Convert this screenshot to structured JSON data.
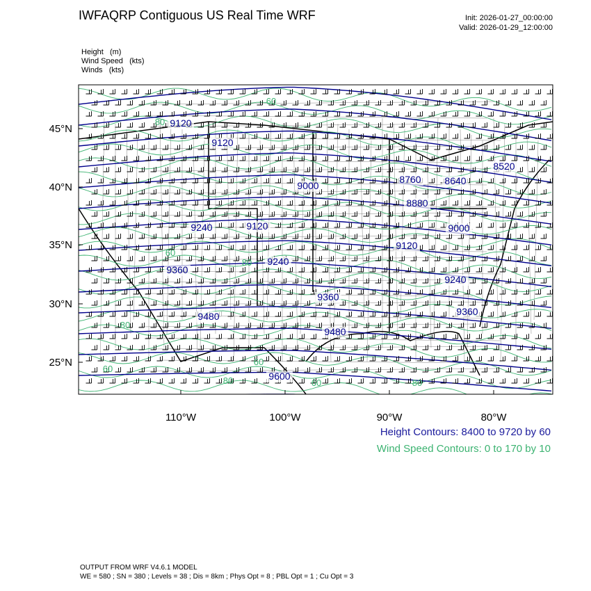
{
  "header": {
    "title": "IWFAQRP Contiguous US Real Time WRF",
    "init": "Init: 2026-01-27_00:00:00",
    "valid": "Valid: 2026-01-29_12:00:00"
  },
  "fields": [
    {
      "name": "Height",
      "unit": "(m)"
    },
    {
      "name": "Wind Speed",
      "unit": "(kts)"
    },
    {
      "name": "Winds",
      "unit": "(kts)"
    }
  ],
  "map": {
    "lat_ticks": [
      "45°N",
      "40°N",
      "35°N",
      "30°N",
      "25°N"
    ],
    "lon_ticks": [
      "110°W",
      "100°W",
      "90°W",
      "80°W"
    ],
    "height_labels": [
      "9120",
      "9120",
      "9000",
      "9240",
      "9120",
      "9240",
      "9360",
      "9480",
      "9360",
      "9480",
      "9600",
      "8520",
      "8760",
      "8640",
      "8880",
      "9000",
      "9120",
      "9240",
      "9360"
    ],
    "wind_labels": [
      "60",
      "80",
      "60",
      "60",
      "80",
      "60",
      "80",
      "80",
      "60",
      "80"
    ],
    "colors": {
      "height": "#00008b",
      "wind_speed": "#3cb371",
      "boundaries": "#000000"
    }
  },
  "legend": {
    "height_contours": "Height Contours: 8400 to 9720 by 60",
    "wind_contours": "Wind Speed Contours: 0 to 170 by 10"
  },
  "footer": {
    "line1": "OUTPUT FROM WRF V4.6.1 MODEL",
    "line2": "WE = 580 ; SN = 380 ; Levels = 38 ; Dis = 8km ; Phys Opt = 8 ; PBL Opt = 1 ; Cu Opt = 3"
  }
}
